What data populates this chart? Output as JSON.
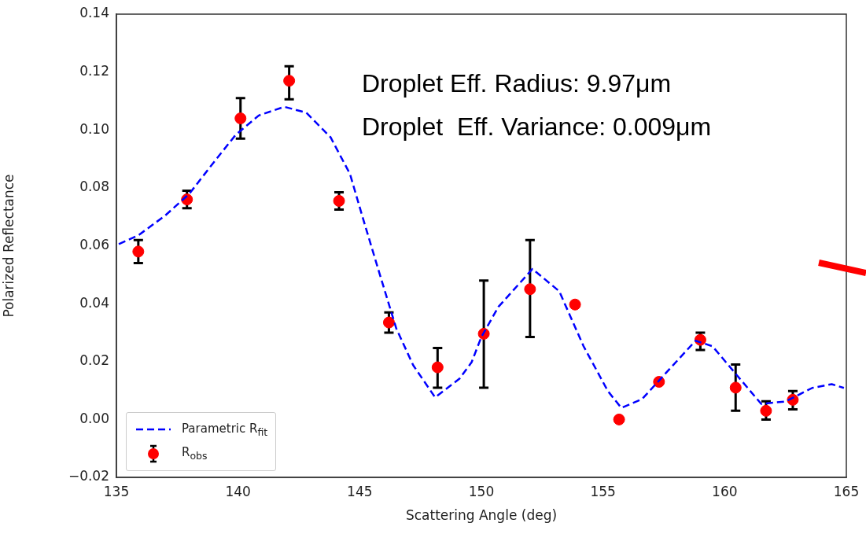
{
  "chart_data": {
    "type": "scatter",
    "xlabel": "Scattering Angle (deg)",
    "ylabel": "Polarized Reflectance",
    "xlim": [
      135,
      165
    ],
    "xticks": [
      135,
      140,
      145,
      150,
      155,
      160,
      165
    ],
    "ylim": [
      -0.02,
      0.14
    ],
    "yticks": [
      {
        "value": -0.02,
        "label": "−0.02"
      },
      {
        "value": 0,
        "label": "0.00"
      },
      0.02,
      0.04,
      0.06,
      0.08,
      {
        "value": 0.1,
        "label": "0.10"
      },
      0.12,
      0.14
    ],
    "grid": false,
    "legend": "bottom left",
    "annotations": [
      "Droplet Eff. Radius: 9.97μm",
      "Droplet  Eff. Variance: 0.009μm"
    ],
    "series": [
      {
        "type": "line",
        "name": "Parametric R$_{fit}$",
        "color": "#0000ff",
        "line_style": "dashed",
        "marker": "none",
        "x": [
          135.1,
          135.9,
          137.0,
          138.0,
          139.0,
          139.9,
          140.85,
          141.9,
          142.8,
          143.8,
          144.6,
          145.1,
          145.8,
          146.5,
          147.2,
          148.1,
          149.1,
          149.6,
          150.0,
          150.7,
          152.1,
          153.2,
          154.2,
          155.2,
          155.75,
          156.6,
          157.7,
          158.8,
          159.5,
          160.4,
          161.5,
          162.5,
          163.6,
          164.4,
          164.9
        ],
        "values": [
          0.0606,
          0.0636,
          0.0704,
          0.078,
          0.0888,
          0.0983,
          0.105,
          0.108,
          0.106,
          0.0975,
          0.0848,
          0.0704,
          0.0508,
          0.0315,
          0.0187,
          0.0076,
          0.0141,
          0.0198,
          0.0285,
          0.0389,
          0.052,
          0.0443,
          0.0253,
          0.0098,
          0.004,
          0.007,
          0.0171,
          0.0272,
          0.0253,
          0.0163,
          0.0054,
          0.0062,
          0.0109,
          0.0122,
          0.0109
        ]
      },
      {
        "type": "scatter",
        "name": "R$_{obs}$",
        "color": "#ff0000",
        "marker": "circle",
        "x": [
          135.9,
          137.9,
          140.1,
          142.1,
          144.15,
          146.2,
          148.2,
          150.1,
          152.0,
          153.85,
          155.66,
          157.3,
          159.0,
          160.45,
          161.7,
          162.8
        ],
        "values": [
          0.058,
          0.076,
          0.104,
          0.117,
          0.0755,
          0.0335,
          0.018,
          0.0296,
          0.045,
          0.0397,
          0.0,
          0.013,
          0.0275,
          0.011,
          0.003,
          0.0068
        ],
        "errors": [
          0.004,
          0.003,
          [
            0.097,
            0.111
          ],
          [
            0.1106,
            0.122
          ],
          0.003,
          0.0035,
          [
            0.011,
            0.0247
          ],
          [
            0.011,
            0.048
          ],
          [
            0.0285,
            0.062
          ],
          null,
          null,
          null,
          [
            0.024,
            0.03
          ],
          [
            0.003,
            0.019
          ],
          [
            0.0,
            0.0063
          ],
          [
            0.0035,
            0.0098
          ]
        ]
      }
    ]
  }
}
